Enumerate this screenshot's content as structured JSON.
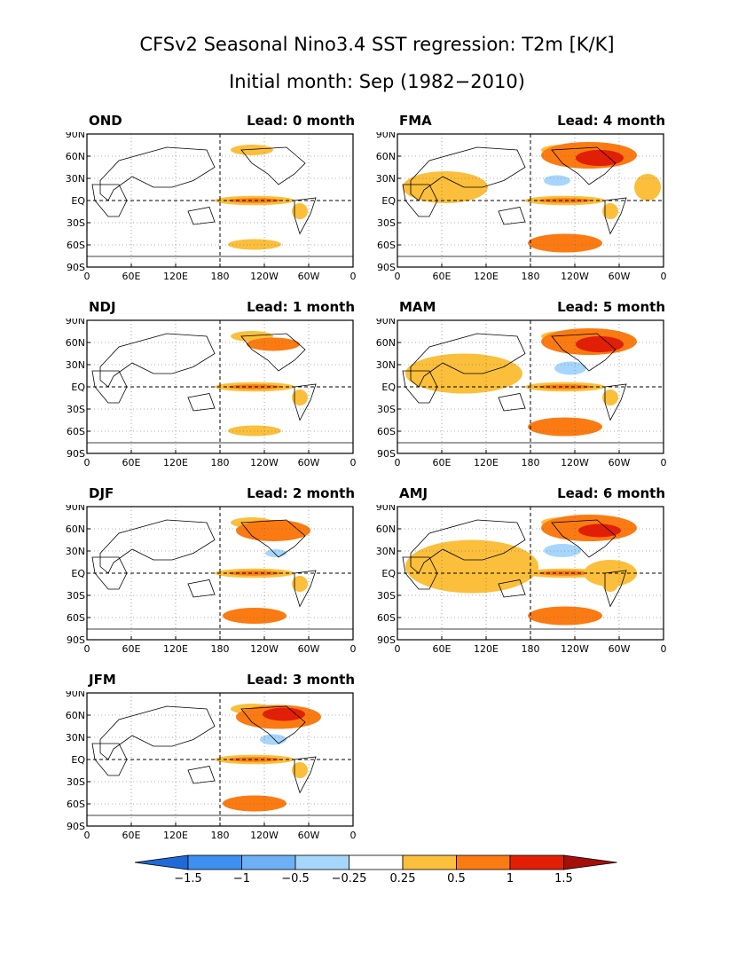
{
  "figure": {
    "title_line1": "CFSv2 Seasonal Nino3.4 SST regression: T2m [K/K]",
    "title_line2": "Initial month: Sep (1982−2010)"
  },
  "axes": {
    "lat_ticks": [
      "90N",
      "60N",
      "30N",
      "EQ",
      "30S",
      "60S",
      "90S"
    ],
    "lon_ticks": [
      "0",
      "60E",
      "120E",
      "180",
      "120W",
      "60W",
      "0"
    ]
  },
  "panels": [
    {
      "season": "OND",
      "lead": "Lead: 0 month"
    },
    {
      "season": "FMA",
      "lead": "Lead: 4 month"
    },
    {
      "season": "NDJ",
      "lead": "Lead: 1 month"
    },
    {
      "season": "MAM",
      "lead": "Lead: 5 month"
    },
    {
      "season": "DJF",
      "lead": "Lead: 2 month"
    },
    {
      "season": "AMJ",
      "lead": "Lead: 6 month"
    },
    {
      "season": "JFM",
      "lead": "Lead: 3 month"
    }
  ],
  "colorbar": {
    "labels": [
      "−1.5",
      "−1",
      "−0.5",
      "−0.25",
      "0.25",
      "0.5",
      "1",
      "1.5"
    ],
    "colors": [
      "#1e6ad8",
      "#3d8ff0",
      "#6eb0f6",
      "#a6d6fb",
      "#ffffff",
      "#fbbf3c",
      "#fb7b12",
      "#e21e06",
      "#a50f0a"
    ]
  },
  "colors": {
    "warm1": "#fbbf3c",
    "warm2": "#fb7b12",
    "warm3": "#e21e06",
    "warm4": "#a50f0a",
    "cool1": "#a6d6fb",
    "cool2": "#6eb0f6"
  }
}
